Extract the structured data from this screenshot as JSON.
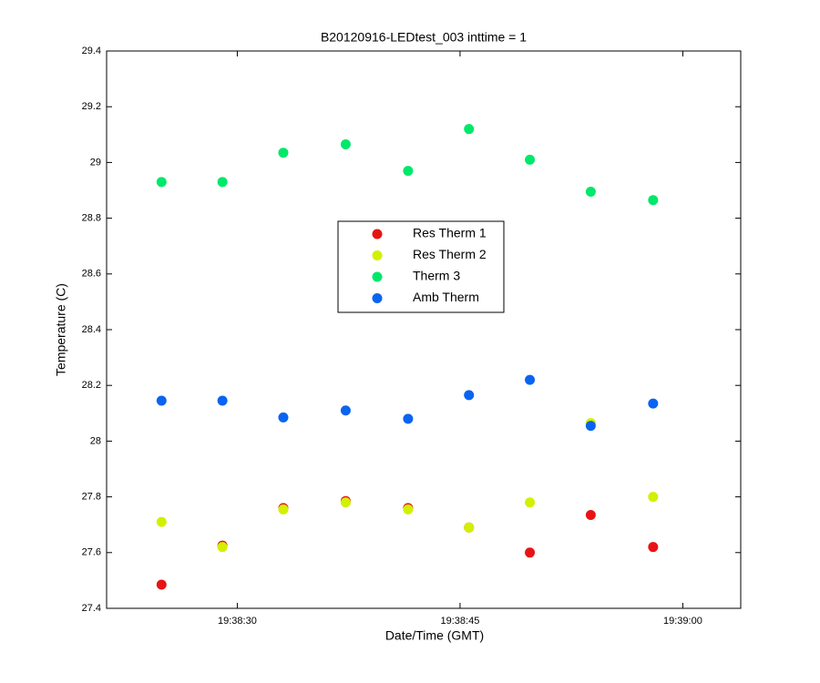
{
  "chart_data": {
    "type": "scatter",
    "title": "B20120916-LEDtest_003 inttime = 1",
    "x_label": "Date/Time (GMT)",
    "y_label": "Temperature (C)",
    "x": [
      70704.9,
      70709.0,
      70713.1,
      70717.3,
      70721.5,
      70725.6,
      70729.7,
      70733.8,
      70738.0
    ],
    "xlim": [
      70701.2,
      70743.9
    ],
    "xticks": [
      {
        "value": 70710,
        "label": "19:38:30"
      },
      {
        "value": 70725,
        "label": "19:38:45"
      },
      {
        "value": 70740,
        "label": "19:39:00"
      }
    ],
    "ylim": [
      27.4,
      29.4
    ],
    "yticks": [
      27.4,
      27.6,
      27.8,
      28,
      28.2,
      28.4,
      28.6,
      28.8,
      29,
      29.2,
      29.4
    ],
    "legend": "center",
    "series": [
      {
        "name": "Res Therm 1",
        "color": "#e81414",
        "values": [
          27.485,
          27.625,
          27.76,
          27.785,
          27.76,
          27.69,
          27.6,
          27.735,
          27.62
        ]
      },
      {
        "name": "Res Therm 2",
        "color": "#d2f000",
        "values": [
          27.71,
          27.62,
          27.755,
          27.78,
          27.755,
          27.69,
          27.78,
          28.065,
          27.8
        ]
      },
      {
        "name": "Therm 3",
        "color": "#00e86a",
        "values": [
          28.93,
          28.93,
          29.035,
          29.065,
          28.97,
          29.12,
          29.01,
          28.895,
          28.865
        ]
      },
      {
        "name": "Amb Therm",
        "color": "#0a64f0",
        "values": [
          28.145,
          28.145,
          28.085,
          28.11,
          28.08,
          28.165,
          28.22,
          28.055,
          28.135
        ]
      }
    ]
  }
}
